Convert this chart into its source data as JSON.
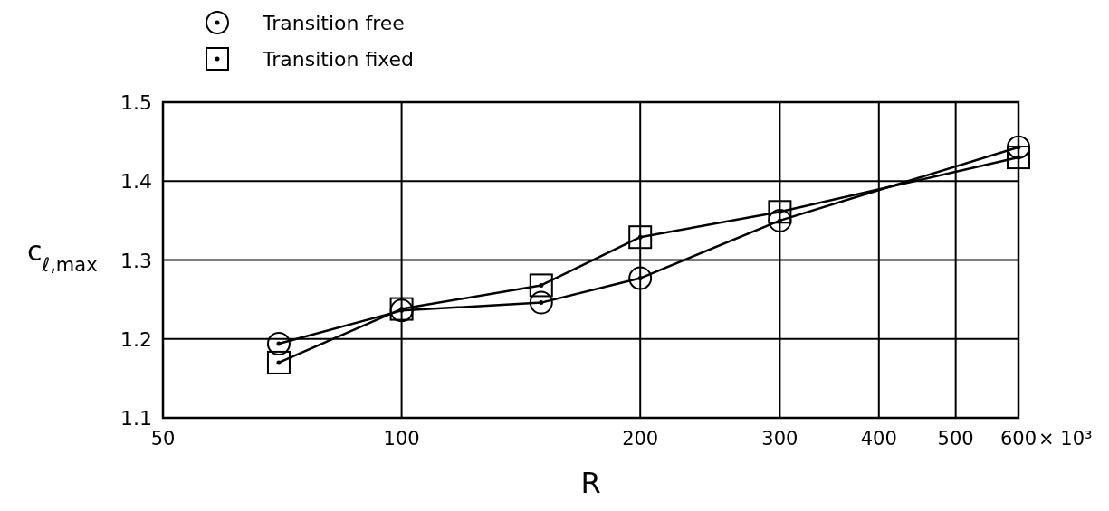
{
  "chart_data": {
    "type": "line",
    "xlabel": "R",
    "ylabel": "c$_{ℓ,max}$",
    "log": "x",
    "grid": true,
    "legend": "top left",
    "line_style": "solid",
    "xlim": [
      50,
      600
    ],
    "xticks": [
      50,
      100,
      200,
      300,
      400,
      500,
      600
    ],
    "annotations": [
      "× 10³"
    ],
    "ylim": [
      1.1,
      1.5
    ],
    "yticks": [
      1.1,
      1.2,
      1.3,
      1.4,
      1.5
    ],
    "series": [
      {
        "name": "Transition free",
        "color": "#000000",
        "marker": "circle",
        "x": [
          70,
          100,
          150,
          200,
          300,
          600
        ],
        "values": [
          1.194,
          1.236,
          1.246,
          1.277,
          1.35,
          1.443
        ]
      },
      {
        "name": "Transition fixed",
        "color": "#000000",
        "marker": "square",
        "x": [
          70,
          100,
          150,
          200,
          300,
          600
        ],
        "values": [
          1.17,
          1.238,
          1.268,
          1.329,
          1.361,
          1.43
        ]
      }
    ]
  }
}
